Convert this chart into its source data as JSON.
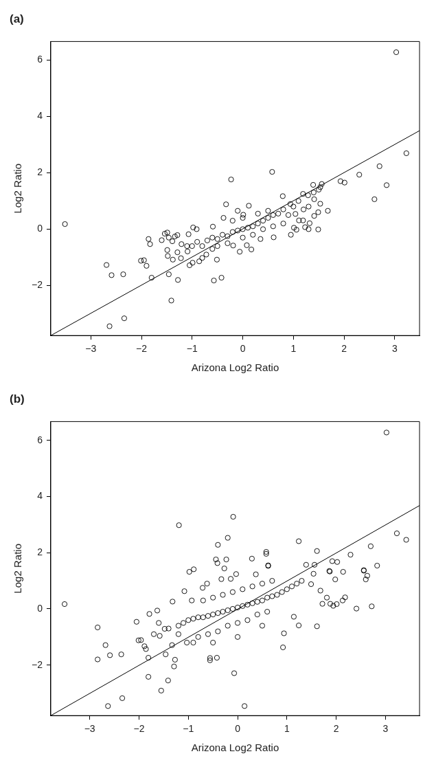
{
  "chart_data": [
    {
      "type": "scatter",
      "title": "(a)",
      "xlabel": "Arizona Log2 Ratio",
      "ylabel": "Log2 Ratio",
      "xlim": [
        -3.79,
        3.49
      ],
      "ylim": [
        -3.77,
        6.65
      ],
      "xticks": [
        -3,
        -2,
        -1,
        0,
        1,
        2,
        3
      ],
      "yticks": [
        -2,
        0,
        2,
        4,
        6
      ],
      "grid": false,
      "marker": "circle",
      "series": [
        {
          "color": "#000000",
          "x": [
            -3.51,
            -2.69,
            -2.59,
            -2.63,
            -2.34,
            -2.36,
            -2.01,
            -1.95,
            -1.9,
            -1.86,
            -1.83,
            -1.8,
            -1.6,
            -1.54,
            -1.49,
            -1.46,
            -1.49,
            -1.48,
            -1.46,
            -1.41,
            -1.39,
            -1.38,
            -1.34,
            -1.29,
            -1.29,
            -1.28,
            -1.21,
            -1.22,
            -1.07,
            -0.98,
            -1.09,
            -1.05,
            -0.99,
            -0.86,
            -0.91,
            -0.8,
            -0.72,
            -0.59,
            -0.51,
            -0.57,
            -0.42,
            -0.33,
            -0.38,
            -0.19,
            -0.1,
            -0.06,
            0.08,
            0.12,
            0.17,
            0.01,
            0.35,
            0.61,
            0.79,
            0.95,
            0.94,
            1.04,
            1.01,
            1.06,
            1.11,
            1.19,
            1.23,
            1.3,
            1.32,
            1.41,
            1.49,
            1.49,
            1.53,
            1.68,
            2.6,
            1.41,
            3.03,
            -0.23,
            0.58,
            1.93,
            2.01,
            2.3,
            2.7,
            3.23,
            2.84,
            1.39,
            1.56,
            1.53,
            1.19,
            1.29,
            -0.7,
            -0.6,
            -0.5,
            -0.4,
            -0.3,
            -0.2,
            -0.1,
            0,
            0.1,
            0.2,
            0.3,
            0.4,
            0.5,
            0.6,
            0.7,
            0.8,
            -0.8,
            -0.5,
            -0.3,
            0,
            0.2,
            0.4,
            0.6,
            0.8,
            -0.2,
            0,
            0.3,
            0.5,
            0.9,
            1,
            1.1,
            1.2,
            1.3,
            1.4,
            1.5,
            -1,
            -0.9,
            -1.1,
            -0.6
          ],
          "values": [
            0.18,
            -1.27,
            -1.63,
            -3.44,
            -3.16,
            -1.6,
            -1.12,
            -1.1,
            -1.3,
            -0.35,
            -0.53,
            -1.72,
            -0.39,
            -0.16,
            -0.12,
            -0.3,
            -0.74,
            -0.95,
            -1.6,
            -2.53,
            -0.43,
            -1.08,
            -0.26,
            -0.21,
            -0.82,
            -1.8,
            -0.53,
            -1.03,
            -0.18,
            0.06,
            -0.79,
            -1.28,
            -1.19,
            -1.14,
            0,
            -1.02,
            -0.9,
            0.09,
            -1.08,
            -1.82,
            -1.72,
            0.88,
            0.4,
            -0.58,
            0.65,
            -0.8,
            -0.57,
            0.83,
            -0.72,
            0.51,
            -0.35,
            -0.29,
            1.17,
            -0.2,
            0.89,
            0.54,
            0.05,
            -0.02,
            0.31,
            0.31,
            0.07,
            0,
            0.21,
            0.47,
            -0.01,
            0.6,
            0.9,
            0.65,
            1.06,
            1.06,
            6.27,
            1.76,
            2.03,
            1.7,
            1.65,
            1.93,
            2.23,
            2.69,
            1.56,
            1.57,
            1.6,
            1.49,
            1.25,
            1.2,
            -0.4,
            -0.3,
            -0.35,
            -0.2,
            -0.25,
            -0.1,
            -0.05,
            0,
            0.05,
            0.1,
            0.2,
            0.3,
            0.4,
            0.5,
            0.55,
            0.7,
            -0.6,
            -0.6,
            -0.5,
            -0.3,
            -0.2,
            0,
            0.1,
            0.2,
            0.3,
            0.4,
            0.55,
            0.65,
            0.5,
            0.8,
            1,
            0.7,
            0.8,
            1.3,
            1.4,
            -0.6,
            -0.45,
            -0.6,
            -0.7
          ]
        },
        {
          "type": "line",
          "color": "#000000",
          "marker": "none",
          "x": [
            -3.79,
            3.49
          ],
          "values": [
            -3.77,
            3.49
          ]
        }
      ]
    },
    {
      "type": "scatter",
      "title": "(b)",
      "xlabel": "Arizona Log2 Ratio",
      "ylabel": "Log2 Ratio",
      "xlim": [
        -3.79,
        3.69
      ],
      "ylim": [
        -3.8,
        6.67
      ],
      "xticks": [
        -3,
        -2,
        -1,
        0,
        1,
        2,
        3
      ],
      "yticks": [
        -2,
        0,
        2,
        4,
        6
      ],
      "grid": false,
      "marker": "circle",
      "series": [
        {
          "color": "#000000",
          "x": [
            -3.51,
            -2.84,
            -2.84,
            -2.68,
            -2.59,
            -2.63,
            -2.34,
            -2.36,
            -2.05,
            -2.01,
            -1.96,
            -1.89,
            -1.86,
            -1.81,
            -1.81,
            -1.79,
            -1.63,
            -1.55,
            -1.46,
            -1.41,
            -1.29,
            -1.27,
            -1.33,
            -1.32,
            -1.48,
            -1.58,
            -1.08,
            -0.98,
            -0.89,
            -0.93,
            -1.03,
            -0.71,
            -0.62,
            -0.56,
            -0.56,
            -0.42,
            -0.07,
            0.14,
            -0.03,
            -0.33,
            -0.14,
            0.37,
            0.62,
            0.92,
            0.94,
            1.24,
            1.61,
            1.14,
            1.68,
            1.72,
            1.81,
            1.88,
            1.94,
            2.01,
            1.98,
            2.13,
            2.18,
            2.41,
            2.72,
            2.56,
            2.63,
            2.6,
            1.87,
            2.14,
            2.83,
            1.49,
            1.54,
            3.02,
            -1.19,
            -0.09,
            -0.2,
            -0.4,
            -0.44,
            -0.41,
            -0.23,
            -0.27,
            0.29,
            0.58,
            0.58,
            0.62,
            1.24,
            1.61,
            1.39,
            1.56,
            1.92,
            2.02,
            2.29,
            2.7,
            3.23,
            3.42,
            2.56,
            1.86,
            -1.2,
            -1.1,
            -1,
            -0.9,
            -0.8,
            -0.7,
            -0.6,
            -0.5,
            -0.4,
            -0.3,
            -0.2,
            -0.1,
            0,
            0.1,
            0.2,
            0.3,
            0.4,
            0.5,
            0.6,
            0.7,
            0.8,
            0.9,
            1,
            1.1,
            1.2,
            1.3,
            -0.8,
            -0.6,
            -0.4,
            -0.2,
            0,
            0.2,
            0.4,
            0.6,
            -0.7,
            -0.5,
            -0.3,
            -0.1,
            0.1,
            0.3,
            0.5,
            0.7,
            -1.4,
            -1.6,
            -1.7,
            -1.2,
            -0.9,
            -0.5,
            0,
            0.5
          ],
          "values": [
            0.17,
            -0.66,
            -1.8,
            -1.29,
            -1.65,
            -3.46,
            -3.18,
            -1.62,
            -0.46,
            -1.12,
            -1.11,
            -1.33,
            -1.43,
            -1.74,
            -2.42,
            -0.18,
            -0.06,
            -2.91,
            -1.62,
            -2.55,
            -2.05,
            -1.81,
            -1.29,
            0.26,
            -0.71,
            -0.96,
            0.63,
            1.32,
            1.41,
            0.3,
            -1.2,
            0.75,
            0.9,
            -1.75,
            -1.83,
            -1.74,
            -2.29,
            -3.46,
            1.24,
            1.06,
            1.07,
            1.23,
            1.53,
            -1.37,
            -0.87,
            -0.59,
            -0.62,
            -0.28,
            0.65,
            0.18,
            0.4,
            0.18,
            0.11,
            0.17,
            1.05,
            0.3,
            0.41,
            0.01,
            0.09,
            1.36,
            1.18,
            1.05,
            1.33,
            1.32,
            1.54,
            0.88,
            1.25,
            6.28,
            2.98,
            3.28,
            2.53,
            2.28,
            1.76,
            1.63,
            1.76,
            1.44,
            1.79,
            2.03,
            1.96,
            1.55,
            2.41,
            2.06,
            1.57,
            1.57,
            1.7,
            1.67,
            1.93,
            2.23,
            2.69,
            2.46,
            1.38,
            1.35,
            -0.6,
            -0.5,
            -0.4,
            -0.35,
            -0.3,
            -0.3,
            -0.25,
            -0.2,
            -0.15,
            -0.1,
            -0.05,
            0,
            0.05,
            0.1,
            0.15,
            0.2,
            0.25,
            0.3,
            0.4,
            0.45,
            0.5,
            0.6,
            0.7,
            0.8,
            0.9,
            1,
            -1,
            -0.9,
            -0.8,
            -0.6,
            -0.5,
            -0.4,
            -0.2,
            -0.1,
            0.3,
            0.4,
            0.5,
            0.6,
            0.7,
            0.8,
            0.9,
            1,
            -0.7,
            -0.5,
            -0.9,
            -0.9,
            -1.2,
            -1.2,
            -1,
            -0.6
          ]
        },
        {
          "type": "line",
          "color": "#000000",
          "marker": "none",
          "x": [
            -3.79,
            3.69
          ],
          "values": [
            -3.8,
            3.68
          ]
        }
      ]
    }
  ]
}
